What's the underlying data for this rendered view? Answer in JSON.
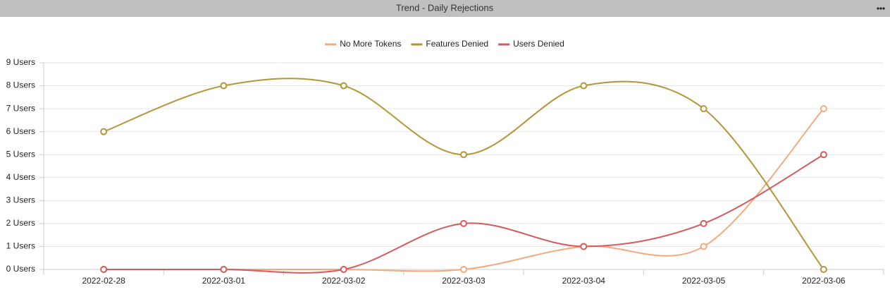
{
  "chart_data": {
    "type": "line",
    "title": "Trend - Daily Rejections",
    "categories": [
      "2022-02-28",
      "2022-03-01",
      "2022-03-02",
      "2022-03-03",
      "2022-03-04",
      "2022-03-05",
      "2022-03-06"
    ],
    "series": [
      {
        "name": "No More Tokens",
        "color": "#f4a97c",
        "values": [
          0,
          0,
          0,
          0,
          1,
          1,
          7
        ]
      },
      {
        "name": "Features Denied",
        "color": "#b39637",
        "values": [
          6,
          8,
          8,
          5,
          8,
          7,
          0
        ]
      },
      {
        "name": "Users Denied",
        "color": "#d65a5c",
        "values": [
          0,
          0,
          0,
          2,
          1,
          2,
          5
        ]
      }
    ],
    "ylim": [
      0,
      9
    ],
    "yticks": [
      {
        "value": 0,
        "label": "0 Users"
      },
      {
        "value": 1,
        "label": "1 Users"
      },
      {
        "value": 2,
        "label": "2 Users"
      },
      {
        "value": 3,
        "label": "3 Users"
      },
      {
        "value": 4,
        "label": "4 Users"
      },
      {
        "value": 5,
        "label": "5 Users"
      },
      {
        "value": 6,
        "label": "6 Users"
      },
      {
        "value": 7,
        "label": "7 Users"
      },
      {
        "value": 8,
        "label": "8 Users"
      },
      {
        "value": 9,
        "label": "9 Users"
      }
    ],
    "grid": true,
    "legend": "top",
    "smooth": true
  }
}
